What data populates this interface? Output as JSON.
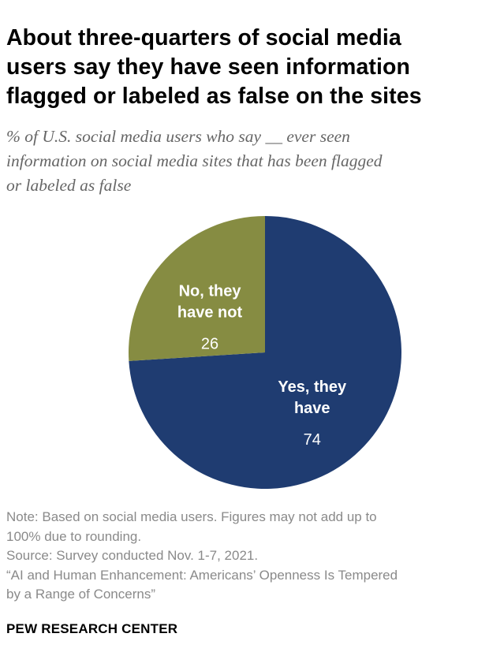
{
  "chart_data": {
    "type": "pie",
    "title_lines": [
      "About three-quarters of social media",
      "users say they have seen information",
      "flagged or labeled as false on the sites"
    ],
    "subtitle_lines": [
      "% of U.S. social media users who say __ ever seen",
      "information on social media sites that has been flagged",
      "or labeled as false"
    ],
    "slices": [
      {
        "label_lines": [
          "Yes, they",
          "have"
        ],
        "value": 74,
        "value_label": "74",
        "color": "#1f3c71"
      },
      {
        "label_lines": [
          "No, they",
          "have not"
        ],
        "value": 26,
        "value_label": "26",
        "color": "#868c42"
      }
    ]
  },
  "notes_lines": [
    "Note: Based on social media users. Figures may not add up to",
    "100% due to rounding.",
    "Source: Survey conducted Nov. 1-7, 2021.",
    "“AI and Human Enhancement: Americans’ Openness Is Tempered",
    "by a Range of Concerns”"
  ],
  "brand": "PEW RESEARCH CENTER"
}
